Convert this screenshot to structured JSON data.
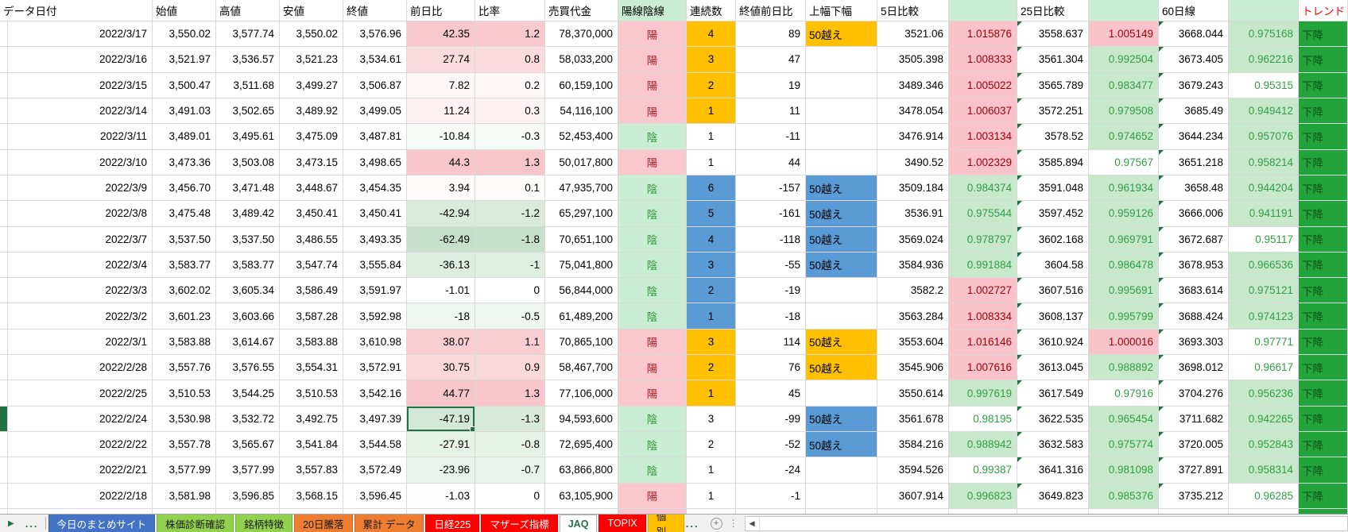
{
  "colors": {
    "accent_green": "#217346",
    "grid_line": "#D9D9D9",
    "candle_up_bg": "#FBC7CE",
    "candle_up_fg": "#A91E2C",
    "candle_down_bg": "#C9EDD2",
    "candle_down_fg": "#35933F",
    "streak_orange": "#FFC000",
    "streak_blue": "#5B9BD5",
    "ratio_up_bg": "#FAC3CB",
    "ratio_up_fg": "#9C0006",
    "ratio_down_bg": "#C8E8CC",
    "ratio_down_fg": "#2F9E44",
    "trend_bg": "#22A33C",
    "trend_fg": "#0A5213",
    "tab_bar_bg": "#F0F0F0"
  },
  "columns": [
    {
      "key": "ind",
      "label": ""
    },
    {
      "key": "date",
      "label": "データ日付"
    },
    {
      "key": "open",
      "label": "始値"
    },
    {
      "key": "high",
      "label": "高値"
    },
    {
      "key": "low",
      "label": "安値"
    },
    {
      "key": "close",
      "label": "終値"
    },
    {
      "key": "chg",
      "label": "前日比"
    },
    {
      "key": "pct",
      "label": "比率"
    },
    {
      "key": "value",
      "label": "売買代金"
    },
    {
      "key": "candle",
      "label": "陽線陰線"
    },
    {
      "key": "streak",
      "label": "連続数"
    },
    {
      "key": "cdiff",
      "label": "終値前日比"
    },
    {
      "key": "range50",
      "label": "上幅下幅"
    },
    {
      "key": "d5",
      "label": "5日比較"
    },
    {
      "key": "r5",
      "label": ""
    },
    {
      "key": "d25",
      "label": "25日比較"
    },
    {
      "key": "r25",
      "label": ""
    },
    {
      "key": "d60",
      "label": "60日線"
    },
    {
      "key": "r60",
      "label": ""
    },
    {
      "key": "trend",
      "label": "トレンド"
    }
  ],
  "rows": [
    {
      "date": "2022/3/17",
      "open": "3,550.02",
      "high": "3,577.74",
      "low": "3,550.02",
      "close": "3,576.96",
      "chg": "42.35",
      "pct": "1.2",
      "value": "78,370,000",
      "candle": "陽",
      "streak": "4",
      "streak_bg": "orange",
      "cdiff": "89",
      "range50": "50越え",
      "range50_bg": "orange",
      "d5": "3521.06",
      "r5": "1.015876",
      "d25": "3558.637",
      "r25": "1.005149",
      "d60": "3668.044",
      "r60": "0.975168",
      "trend": "下降"
    },
    {
      "date": "2022/3/16",
      "open": "3,521.97",
      "high": "3,536.57",
      "low": "3,521.23",
      "close": "3,534.61",
      "chg": "27.74",
      "pct": "0.8",
      "value": "58,033,200",
      "candle": "陽",
      "streak": "3",
      "streak_bg": "orange",
      "cdiff": "47",
      "range50": "",
      "range50_bg": "none",
      "d5": "3505.398",
      "r5": "1.008333",
      "d25": "3561.304",
      "r25": "0.992504",
      "d60": "3673.405",
      "r60": "0.962216",
      "trend": "下降"
    },
    {
      "date": "2022/3/15",
      "open": "3,500.47",
      "high": "3,511.68",
      "low": "3,499.27",
      "close": "3,506.87",
      "chg": "7.82",
      "pct": "0.2",
      "value": "60,159,100",
      "candle": "陽",
      "streak": "2",
      "streak_bg": "orange",
      "cdiff": "19",
      "range50": "",
      "range50_bg": "none",
      "d5": "3489.346",
      "r5": "1.005022",
      "d25": "3565.789",
      "r25": "0.983477",
      "d60": "3679.243",
      "r60": "0.95315",
      "trend": "下降"
    },
    {
      "date": "2022/3/14",
      "open": "3,491.03",
      "high": "3,502.65",
      "low": "3,489.92",
      "close": "3,499.05",
      "chg": "11.24",
      "pct": "0.3",
      "value": "54,116,100",
      "candle": "陽",
      "streak": "1",
      "streak_bg": "orange",
      "cdiff": "11",
      "range50": "",
      "range50_bg": "none",
      "d5": "3478.054",
      "r5": "1.006037",
      "d25": "3572.251",
      "r25": "0.979508",
      "d60": "3685.49",
      "r60": "0.949412",
      "trend": "下降"
    },
    {
      "date": "2022/3/11",
      "open": "3,489.01",
      "high": "3,495.61",
      "low": "3,475.09",
      "close": "3,487.81",
      "chg": "-10.84",
      "pct": "-0.3",
      "value": "52,453,400",
      "candle": "陰",
      "streak": "1",
      "streak_bg": "none",
      "cdiff": "-11",
      "range50": "",
      "range50_bg": "none",
      "d5": "3476.914",
      "r5": "1.003134",
      "d25": "3578.52",
      "r25": "0.974652",
      "d60": "3644.234",
      "r60": "0.957076",
      "trend": "下降"
    },
    {
      "date": "2022/3/10",
      "open": "3,473.36",
      "high": "3,503.08",
      "low": "3,473.15",
      "close": "3,498.65",
      "chg": "44.3",
      "pct": "1.3",
      "value": "50,017,800",
      "candle": "陽",
      "streak": "1",
      "streak_bg": "none",
      "cdiff": "44",
      "range50": "",
      "range50_bg": "none",
      "d5": "3490.52",
      "r5": "1.002329",
      "d25": "3585.894",
      "r25": "0.97567",
      "d60": "3651.218",
      "r60": "0.958214",
      "trend": "下降"
    },
    {
      "date": "2022/3/9",
      "open": "3,456.70",
      "high": "3,471.48",
      "low": "3,448.67",
      "close": "3,454.35",
      "chg": "3.94",
      "pct": "0.1",
      "value": "47,935,700",
      "candle": "陰",
      "streak": "6",
      "streak_bg": "blue",
      "cdiff": "-157",
      "range50": "50越え",
      "range50_bg": "blue",
      "d5": "3509.184",
      "r5": "0.984374",
      "d25": "3591.048",
      "r25": "0.961934",
      "d60": "3658.48",
      "r60": "0.944204",
      "trend": "下降"
    },
    {
      "date": "2022/3/8",
      "open": "3,475.48",
      "high": "3,489.42",
      "low": "3,450.41",
      "close": "3,450.41",
      "chg": "-42.94",
      "pct": "-1.2",
      "value": "65,297,100",
      "candle": "陰",
      "streak": "5",
      "streak_bg": "blue",
      "cdiff": "-161",
      "range50": "50越え",
      "range50_bg": "blue",
      "d5": "3536.91",
      "r5": "0.975544",
      "d25": "3597.452",
      "r25": "0.959126",
      "d60": "3666.006",
      "r60": "0.941191",
      "trend": "下降"
    },
    {
      "date": "2022/3/7",
      "open": "3,537.50",
      "high": "3,537.50",
      "low": "3,486.55",
      "close": "3,493.35",
      "chg": "-62.49",
      "pct": "-1.8",
      "value": "70,651,100",
      "candle": "陰",
      "streak": "4",
      "streak_bg": "blue",
      "cdiff": "-118",
      "range50": "50越え",
      "range50_bg": "blue",
      "d5": "3569.024",
      "r5": "0.978797",
      "d25": "3602.168",
      "r25": "0.969791",
      "d60": "3672.687",
      "r60": "0.95117",
      "trend": "下降"
    },
    {
      "date": "2022/3/4",
      "open": "3,583.77",
      "high": "3,583.77",
      "low": "3,547.74",
      "close": "3,555.84",
      "chg": "-36.13",
      "pct": "-1",
      "value": "75,041,800",
      "candle": "陰",
      "streak": "3",
      "streak_bg": "blue",
      "cdiff": "-55",
      "range50": "50越え",
      "range50_bg": "blue",
      "d5": "3584.936",
      "r5": "0.991884",
      "d25": "3604.58",
      "r25": "0.986478",
      "d60": "3678.953",
      "r60": "0.966536",
      "trend": "下降"
    },
    {
      "date": "2022/3/3",
      "open": "3,602.02",
      "high": "3,605.34",
      "low": "3,586.49",
      "close": "3,591.97",
      "chg": "-1.01",
      "pct": "0",
      "value": "56,844,000",
      "candle": "陰",
      "streak": "2",
      "streak_bg": "blue",
      "cdiff": "-19",
      "range50": "",
      "range50_bg": "none",
      "d5": "3582.2",
      "r5": "1.002727",
      "d25": "3607.516",
      "r25": "0.995691",
      "d60": "3683.614",
      "r60": "0.975121",
      "trend": "下降"
    },
    {
      "date": "2022/3/2",
      "open": "3,601.23",
      "high": "3,603.66",
      "low": "3,587.28",
      "close": "3,592.98",
      "chg": "-18",
      "pct": "-0.5",
      "value": "61,489,200",
      "candle": "陰",
      "streak": "1",
      "streak_bg": "blue",
      "cdiff": "-18",
      "range50": "",
      "range50_bg": "none",
      "d5": "3563.284",
      "r5": "1.008334",
      "d25": "3608.137",
      "r25": "0.995799",
      "d60": "3688.424",
      "r60": "0.974123",
      "trend": "下降"
    },
    {
      "date": "2022/3/1",
      "open": "3,583.88",
      "high": "3,614.67",
      "low": "3,583.88",
      "close": "3,610.98",
      "chg": "38.07",
      "pct": "1.1",
      "value": "70,865,100",
      "candle": "陽",
      "streak": "3",
      "streak_bg": "orange",
      "cdiff": "114",
      "range50": "50越え",
      "range50_bg": "orange",
      "d5": "3553.604",
      "r5": "1.016146",
      "d25": "3610.924",
      "r25": "1.000016",
      "d60": "3693.303",
      "r60": "0.97771",
      "trend": "下降"
    },
    {
      "date": "2022/2/28",
      "open": "3,557.76",
      "high": "3,576.55",
      "low": "3,554.31",
      "close": "3,572.91",
      "chg": "30.75",
      "pct": "0.9",
      "value": "58,467,700",
      "candle": "陽",
      "streak": "2",
      "streak_bg": "orange",
      "cdiff": "76",
      "range50": "50越え",
      "range50_bg": "orange",
      "d5": "3545.906",
      "r5": "1.007616",
      "d25": "3613.045",
      "r25": "0.988892",
      "d60": "3698.012",
      "r60": "0.96617",
      "trend": "下降"
    },
    {
      "date": "2022/2/25",
      "open": "3,510.53",
      "high": "3,544.25",
      "low": "3,510.53",
      "close": "3,542.16",
      "chg": "44.77",
      "pct": "1.3",
      "value": "77,106,000",
      "candle": "陽",
      "streak": "1",
      "streak_bg": "orange",
      "cdiff": "45",
      "range50": "",
      "range50_bg": "none",
      "d5": "3550.614",
      "r5": "0.997619",
      "d25": "3617.549",
      "r25": "0.97916",
      "d60": "3704.276",
      "r60": "0.956236",
      "trend": "下降"
    },
    {
      "date": "2022/2/24",
      "open": "3,530.98",
      "high": "3,532.72",
      "low": "3,492.75",
      "close": "3,497.39",
      "chg": "-47.19",
      "pct": "-1.3",
      "value": "94,593,600",
      "candle": "陰",
      "streak": "3",
      "streak_bg": "none",
      "cdiff": "-99",
      "range50": "50越え",
      "range50_bg": "blue",
      "d5": "3561.678",
      "r5": "0.98195",
      "d25": "3622.535",
      "r25": "0.965454",
      "d60": "3711.682",
      "r60": "0.942265",
      "trend": "下降"
    },
    {
      "date": "2022/2/22",
      "open": "3,557.78",
      "high": "3,565.67",
      "low": "3,541.84",
      "close": "3,544.58",
      "chg": "-27.91",
      "pct": "-0.8",
      "value": "72,695,400",
      "candle": "陰",
      "streak": "2",
      "streak_bg": "none",
      "cdiff": "-52",
      "range50": "50越え",
      "range50_bg": "blue",
      "d5": "3584.216",
      "r5": "0.988942",
      "d25": "3632.583",
      "r25": "0.975774",
      "d60": "3720.005",
      "r60": "0.952843",
      "trend": "下降"
    },
    {
      "date": "2022/2/21",
      "open": "3,577.99",
      "high": "3,577.99",
      "low": "3,557.83",
      "close": "3,572.49",
      "chg": "-23.96",
      "pct": "-0.7",
      "value": "63,866,800",
      "candle": "陰",
      "streak": "1",
      "streak_bg": "none",
      "cdiff": "-24",
      "range50": "",
      "range50_bg": "none",
      "d5": "3594.526",
      "r5": "0.99387",
      "d25": "3641.316",
      "r25": "0.981098",
      "d60": "3727.891",
      "r60": "0.958314",
      "trend": "下降"
    },
    {
      "date": "2022/2/18",
      "open": "3,581.98",
      "high": "3,596.85",
      "low": "3,568.15",
      "close": "3,596.45",
      "chg": "-1.03",
      "pct": "0",
      "value": "63,105,900",
      "candle": "陽",
      "streak": "1",
      "streak_bg": "none",
      "cdiff": "-1",
      "range50": "",
      "range50_bg": "none",
      "d5": "3607.914",
      "r5": "0.996823",
      "d25": "3649.823",
      "r25": "0.985376",
      "d60": "3735.212",
      "r60": "0.96285",
      "trend": "下降"
    },
    {
      "date": "",
      "open": "",
      "high": "",
      "low": "",
      "close": "",
      "chg": "",
      "pct": "",
      "value": "",
      "candle": "陽",
      "streak": "",
      "streak_bg": "none",
      "cdiff": "",
      "range50": "",
      "range50_bg": "none",
      "d5": "",
      "r5": "",
      "d25": "",
      "r25": "",
      "d60": "",
      "r60": "",
      "trend": "下降",
      "partial": true
    }
  ],
  "selection": {
    "row_index": 15,
    "column": "chg",
    "value": "-47.19"
  },
  "sheet_tabs": [
    {
      "label": "今日のまとめサイト",
      "bg": "#4472C4",
      "fg": "#FFFFFF",
      "active": false
    },
    {
      "label": "株価診断確認",
      "bg": "#92D050",
      "fg": "#1A1A1A",
      "active": false
    },
    {
      "label": "銘柄特徴",
      "bg": "#92D050",
      "fg": "#1A1A1A",
      "active": false
    },
    {
      "label": "20日騰落",
      "bg": "#ED7D31",
      "fg": "#1A1A1A",
      "active": false
    },
    {
      "label": "累計 データ",
      "bg": "#ED7D31",
      "fg": "#1A1A1A",
      "active": false
    },
    {
      "label": "日経225",
      "bg": "#FF0000",
      "fg": "#FFFFFF",
      "active": false
    },
    {
      "label": "マザーズ指標",
      "bg": "#FF0000",
      "fg": "#FFFFFF",
      "active": false
    },
    {
      "label": "JAQ",
      "bg": "#FFFFFF",
      "fg": "#217346",
      "active": true
    },
    {
      "label": "TOPIX",
      "bg": "#FF0000",
      "fg": "#FFFFFF",
      "active": false
    },
    {
      "label": "個別",
      "bg": "#FFC000",
      "fg": "#1A1A1A",
      "active": false,
      "truncated": true
    }
  ],
  "tabbar": {
    "nav_arrow": "▶",
    "overflow_left": "...",
    "overflow_right": "...",
    "add_button": "+",
    "menu_dots": "⋮",
    "scroll_left": "◀"
  }
}
